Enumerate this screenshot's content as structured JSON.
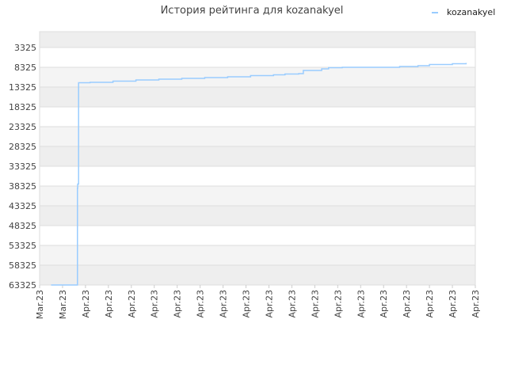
{
  "chart_data": {
    "type": "line",
    "title": "История рейтинга для kozanakyel",
    "xlabel": "",
    "ylabel": "",
    "y_inverted": true,
    "ylim": [
      63325,
      -675
    ],
    "yticks": [
      3325,
      8325,
      13325,
      18325,
      23325,
      28325,
      33325,
      38325,
      43325,
      48325,
      53325,
      58325,
      63325
    ],
    "xtick_labels": [
      "Mar.23",
      "Mar.23",
      "Apr.23",
      "Apr.23",
      "Apr.23",
      "Apr.23",
      "Apr.23",
      "Apr.23",
      "Apr.23",
      "Apr.23",
      "Apr.23",
      "Apr.23",
      "Apr.23",
      "Apr.23",
      "Apr.23",
      "Apr.23",
      "Apr.23",
      "Apr.23",
      "Apr.23",
      "Apr.23"
    ],
    "legend_position": "top-right",
    "grid": true,
    "band_colors": [
      "#eeeeee",
      "#ffffff",
      "#f4f4f4"
    ],
    "series": [
      {
        "name": "kozanakyel",
        "color": "#99ccff",
        "x": [
          0.5,
          1.6,
          1.65,
          1.66,
          1.7,
          2.2,
          3.2,
          4.2,
          5.2,
          6.2,
          7.2,
          8.2,
          9.2,
          10.2,
          10.7,
          11.3,
          11.5,
          12.3,
          12.6,
          13.2,
          14.7,
          15.7,
          16.2,
          16.5,
          17.0,
          18.0,
          18.6
        ],
        "y": [
          63325,
          63325,
          38825,
          37825,
          12225,
          12125,
          11825,
          11525,
          11325,
          11125,
          10925,
          10725,
          10425,
          10225,
          10025,
          9925,
          9125,
          8725,
          8425,
          8325,
          8325,
          8125,
          8125,
          7925,
          7625,
          7425,
          7225
        ]
      }
    ]
  }
}
